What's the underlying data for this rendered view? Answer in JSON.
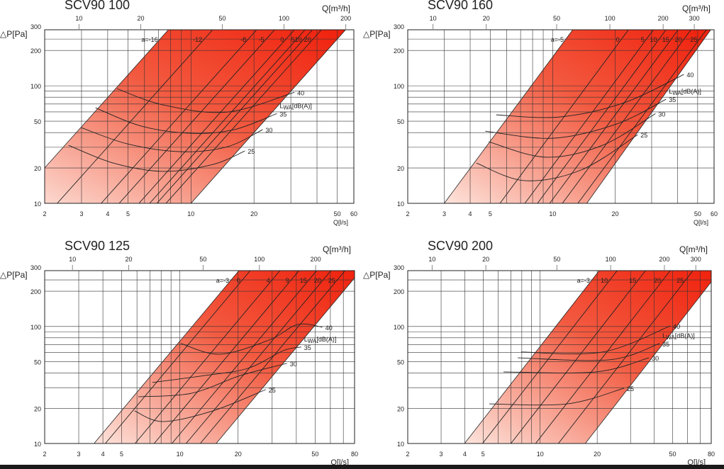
{
  "labels": {
    "dp": "△P[Pa]",
    "q_m3h": "Q[m³/h]",
    "q_ls": "Q[l/s]",
    "lwa_main": "L",
    "lwa_sub": "WA",
    "lwa_unit": "[dB(A)]"
  },
  "colors": {
    "band_light": "#fde4dc",
    "band_dark": "#f0200c",
    "grid": "#222222"
  },
  "chart_data": [
    {
      "type": "line",
      "title": "SCV90 100",
      "xlabel": "Q[l/s]",
      "ylabel": "△P[Pa]",
      "top_xlabel": "Q[m³/h]",
      "xlim": [
        2,
        60
      ],
      "ylim": [
        10,
        300
      ],
      "top_xlim": [
        6.8,
        219
      ],
      "x_ticks": [
        "2",
        "3",
        "4",
        "5",
        "10",
        "20",
        "50",
        "60"
      ],
      "x_grid": [
        3,
        4,
        5,
        6,
        7,
        8,
        9,
        10,
        20,
        30,
        40,
        50
      ],
      "top_ticks": [
        "10",
        "20",
        "50",
        "100",
        "200"
      ],
      "y_ticks": [
        "10",
        "20",
        "50",
        "100",
        "200",
        "300"
      ],
      "y_grid": [
        20,
        30,
        40,
        50,
        60,
        70,
        80,
        90,
        100,
        200,
        250
      ],
      "band": [
        [
          1.41,
          10
        ],
        [
          7.8,
          300
        ],
        [
          54.8,
          300
        ],
        [
          10,
          10
        ]
      ],
      "damper_labels": [
        "a=-16",
        "-12",
        "-8",
        "-5",
        "0",
        "5",
        "10",
        "20"
      ],
      "damper_q300": [
        12.7,
        20.6,
        25.1,
        31.2,
        35.1,
        38.0,
        42.0
      ],
      "sound_curves": [
        {
          "name": "40",
          "points": [
            [
              4.43,
              94.6
            ],
            [
              7.36,
              68.8
            ],
            [
              14.9,
              59.8
            ],
            [
              31.2,
              88
            ]
          ]
        },
        {
          "name": "35",
          "points": [
            [
              3.5,
              65
            ],
            [
              5.8,
              45.4
            ],
            [
              10.1,
              39.4
            ],
            [
              16.1,
              42.4
            ],
            [
              25.7,
              58
            ]
          ]
        },
        {
          "name": "30",
          "points": [
            [
              3.0,
              44
            ],
            [
              4.99,
              32
            ],
            [
              8.95,
              27.5
            ],
            [
              14.9,
              30.3
            ],
            [
              22,
              42.4
            ]
          ]
        },
        {
          "name": "25",
          "points": [
            [
              2.6,
              31.2
            ],
            [
              4.26,
              22
            ],
            [
              7.36,
              18.7
            ],
            [
              12.7,
              21.4
            ],
            [
              18.1,
              27.9
            ]
          ]
        }
      ]
    },
    {
      "type": "line",
      "title": "SCV90 160",
      "xlabel": "Q[l/s]",
      "ylabel": "△P[Pa]",
      "top_xlabel": "Q[m³/h]",
      "xlim": [
        2,
        60
      ],
      "ylim": [
        10,
        300
      ],
      "top_xlim": [
        7.2,
        388
      ],
      "x_ticks": [
        "2",
        "3",
        "4",
        "5",
        "10",
        "20",
        "50",
        "60"
      ],
      "x_grid": [
        3,
        4,
        5,
        6,
        7,
        8,
        9,
        10,
        20,
        30,
        40,
        50
      ],
      "top_ticks": [
        "10",
        "20",
        "50",
        "100",
        "200",
        "300"
      ],
      "y_ticks": [
        "10",
        "20",
        "50",
        "100",
        "200",
        "300"
      ],
      "y_grid": [
        20,
        30,
        40,
        50,
        60,
        70,
        80,
        90,
        100,
        200,
        250
      ],
      "band": [
        [
          3.0,
          10
        ],
        [
          12.5,
          300
        ],
        [
          57.8,
          300
        ],
        [
          14.6,
          10
        ]
      ],
      "damper_labels": [
        "a=-5",
        "0",
        "5",
        "10",
        "15",
        "20",
        "25"
      ],
      "damper_q300": [
        23.2,
        30.6,
        35.2,
        40.3,
        46.4,
        55.1
      ],
      "sound_curves": [
        {
          "name": "40",
          "points": [
            [
              5.34,
              56.6
            ],
            [
              10.8,
              54.3
            ],
            [
              22,
              71.6
            ],
            [
              42.9,
              125
            ]
          ]
        },
        {
          "name": "35",
          "points": [
            [
              4.73,
              41.1
            ],
            [
              10,
              35.8
            ],
            [
              20.3,
              47.3
            ],
            [
              35.2,
              76.9
            ]
          ]
        },
        {
          "name": "30",
          "points": [
            [
              4.92,
              33.4
            ],
            [
              9.26,
              24.7
            ],
            [
              17.4,
              31.2
            ],
            [
              31.3,
              58
            ]
          ]
        },
        {
          "name": "25",
          "points": [
            [
              4.29,
              22
            ],
            [
              7.31,
              15.6
            ],
            [
              13.7,
              19.2
            ],
            [
              25.7,
              38.4
            ]
          ]
        }
      ]
    },
    {
      "type": "line",
      "title": "SCV90 125",
      "xlabel": "Q[l/s]",
      "ylabel": "△P[Pa]",
      "top_xlabel": "Q[m³/h]",
      "xlim": [
        2,
        80
      ],
      "ylim": [
        10,
        300
      ],
      "top_xlim": [
        7.1,
        323
      ],
      "x_ticks": [
        "2",
        "3",
        "4",
        "5",
        "10",
        "20",
        "50",
        "80"
      ],
      "x_grid": [
        3,
        4,
        5,
        6,
        7,
        8,
        9,
        10,
        20,
        30,
        40,
        50,
        60,
        70
      ],
      "top_ticks": [
        "10",
        "20",
        "50",
        "100",
        "200"
      ],
      "y_ticks": [
        "10",
        "20",
        "50",
        "100",
        "200",
        "300"
      ],
      "y_grid": [
        20,
        30,
        40,
        50,
        60,
        70,
        80,
        90,
        100,
        200,
        250
      ],
      "band": [
        [
          3.6,
          10
        ],
        [
          20.2,
          300
        ],
        [
          86,
          300
        ],
        [
          15.4,
          10
        ]
      ],
      "damper_labels": [
        "a=-3",
        "0",
        "4",
        "9",
        "15",
        "20",
        "25"
      ],
      "damper_q300": [
        23.1,
        32.9,
        41.3,
        51,
        60.4,
        71.5
      ],
      "sound_curves": [
        {
          "name": "40",
          "points": [
            [
              10.1,
              71.6
            ],
            [
              16.1,
              58
            ],
            [
              29,
              76.7
            ],
            [
              40.6,
              104
            ],
            [
              54.6,
              98.6
            ]
          ]
        },
        {
          "name": "35",
          "points": [
            [
              7.21,
              33.2
            ],
            [
              13.6,
              38.2
            ],
            [
              22.5,
              43.9
            ],
            [
              34.3,
              62.2
            ],
            [
              42.4,
              66.7
            ]
          ]
        },
        {
          "name": "30",
          "points": [
            [
              6.1,
              25.1
            ],
            [
              11.5,
              26.9
            ],
            [
              20.7,
              38.2
            ],
            [
              35.8,
              48.4
            ]
          ]
        },
        {
          "name": "25",
          "points": [
            [
              5.83,
              19
            ],
            [
              8.18,
              15.4
            ],
            [
              14.8,
              19
            ],
            [
              27.8,
              28.9
            ]
          ]
        }
      ]
    },
    {
      "type": "line",
      "title": "SCV90 200",
      "xlabel": "Q[l/s]",
      "ylabel": "△P[Pa]",
      "top_xlabel": "Q[m³/h]",
      "xlim": [
        2,
        80
      ],
      "ylim": [
        10,
        300
      ],
      "top_xlim": [
        7.3,
        366
      ],
      "x_ticks": [
        "2",
        "3",
        "4",
        "5",
        "10",
        "20",
        "50",
        "80"
      ],
      "x_grid": [
        3,
        4,
        5,
        6,
        7,
        8,
        9,
        10,
        20,
        30,
        40,
        50,
        60,
        70
      ],
      "top_ticks": [
        "10",
        "20",
        "50",
        "100",
        "200",
        "300"
      ],
      "y_ticks": [
        "10",
        "20",
        "50",
        "100",
        "200",
        "300"
      ],
      "y_grid": [
        20,
        30,
        40,
        50,
        60,
        70,
        80,
        90,
        100,
        200,
        250
      ],
      "band": [
        [
          3.99,
          10
        ],
        [
          20.5,
          300
        ],
        [
          89,
          300
        ],
        [
          17.3,
          10
        ]
      ],
      "damper_labels": [
        "a=-3",
        "10",
        "15",
        "20",
        "25"
      ],
      "damper_q300": [
        25.5,
        36,
        48.6,
        64.1
      ],
      "sound_curves": [
        {
          "name": "40",
          "points": [
            [
              7.94,
              60.5
            ],
            [
              21.4,
              60.5
            ],
            [
              48.6,
              101
            ]
          ]
        },
        {
          "name": "35",
          "points": [
            [
              7.62,
              54
            ],
            [
              23.3,
              51.9
            ],
            [
              42.7,
              71.6
            ]
          ]
        },
        {
          "name": "30",
          "points": [
            [
              6.41,
              40.9
            ],
            [
              19.7,
              40.9
            ],
            [
              37.5,
              54
            ]
          ]
        },
        {
          "name": "25",
          "points": [
            [
              5.39,
              21.8
            ],
            [
              13.9,
              21.8
            ],
            [
              27.7,
              29.7
            ]
          ]
        }
      ]
    }
  ]
}
